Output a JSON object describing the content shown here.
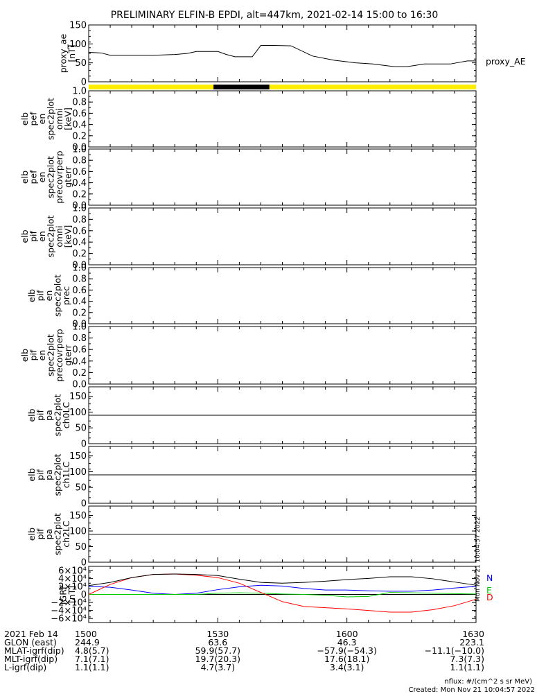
{
  "title": "PRELIMINARY ELFIN-B EPDI, alt=447km, 2021-02-14 15:00 to 16:30",
  "colors": {
    "background": "#ffffff",
    "axes": "#000000",
    "sunlit_bar": "#ffee00",
    "eclipse_bar": "#000000",
    "N": "#0000ff",
    "E": "#00c800",
    "D": "#ff0000",
    "total": "#000000"
  },
  "chart_data": [
    {
      "type": "line",
      "ylabel_lines": [
        "proxy_ae",
        "[nT]"
      ],
      "ylim": [
        0,
        150
      ],
      "yticks": [
        0,
        50,
        100,
        150
      ],
      "ytick_labels": [
        "0",
        "50",
        "100",
        "150"
      ],
      "legend": "proxy_AE",
      "x_minutes": [
        0,
        3,
        5,
        10,
        15,
        20,
        23,
        25,
        28,
        30,
        32,
        34,
        36,
        38,
        40,
        43,
        47,
        52,
        57,
        62,
        66,
        71,
        74,
        78,
        84,
        88,
        90
      ],
      "values": [
        78,
        76,
        70,
        70,
        70,
        72,
        75,
        80,
        80,
        80,
        72,
        66,
        66,
        66,
        96,
        96,
        95,
        68,
        57,
        50,
        47,
        40,
        40,
        47,
        47,
        55,
        55
      ]
    },
    {
      "type": "bar",
      "series": "sunlight",
      "segments": [
        {
          "start_minutes": 0,
          "end_minutes": 29,
          "state": "sunlit"
        },
        {
          "start_minutes": 29,
          "end_minutes": 42,
          "state": "eclipse"
        },
        {
          "start_minutes": 42,
          "end_minutes": 90,
          "state": "sunlit"
        }
      ]
    },
    {
      "type": "heatmap",
      "ylabel_lines": [
        "elb",
        "pef",
        "en",
        "spec2plot",
        "omni",
        "[keV]"
      ],
      "ylim": [
        0,
        1
      ],
      "ytick_labels": [
        "0.0",
        "0.2",
        "0.4",
        "0.6",
        "0.8",
        "1.0"
      ]
    },
    {
      "type": "heatmap",
      "ylabel_lines": [
        "elb",
        "pef",
        "en",
        "spec2plot",
        "precovrperp",
        "gterr"
      ],
      "ylim": [
        0,
        1
      ],
      "ytick_labels": [
        "0.0",
        "0.2",
        "0.4",
        "0.6",
        "0.8",
        "1.0"
      ]
    },
    {
      "type": "heatmap",
      "ylabel_lines": [
        "elb",
        "pif",
        "en",
        "spec2plot",
        "omni",
        "[keV]"
      ],
      "ylim": [
        0,
        1
      ],
      "ytick_labels": [
        "0.0",
        "0.2",
        "0.4",
        "0.6",
        "0.8",
        "1.0"
      ]
    },
    {
      "type": "heatmap",
      "ylabel_lines": [
        "elb",
        "pif",
        "en",
        "spec2plot",
        "prec"
      ],
      "ylim": [
        0,
        1
      ],
      "ytick_labels": [
        "0.0",
        "0.2",
        "0.4",
        "0.6",
        "0.8",
        "1.0"
      ]
    },
    {
      "type": "heatmap",
      "ylabel_lines": [
        "elb",
        "pif",
        "en",
        "spec2plot",
        "precovrperp",
        "gterr"
      ],
      "ylim": [
        0,
        1
      ],
      "ytick_labels": [
        "0.0",
        "0.2",
        "0.4",
        "0.6",
        "0.8",
        "1.0"
      ]
    },
    {
      "type": "heatmap",
      "ylabel_lines": [
        "elb",
        "pif",
        "pa",
        "spec2plot",
        "ch0LC"
      ],
      "ylim": [
        0,
        180
      ],
      "ytick_labels": [
        "0",
        "50",
        "100",
        "150"
      ],
      "hline": 90
    },
    {
      "type": "heatmap",
      "ylabel_lines": [
        "elb",
        "pif",
        "pa",
        "spec2plot",
        "ch1LC"
      ],
      "ylim": [
        0,
        180
      ],
      "ytick_labels": [
        "0",
        "50",
        "100",
        "150"
      ],
      "hline": 90
    },
    {
      "type": "heatmap",
      "ylabel_lines": [
        "elb",
        "pif",
        "pa",
        "spec2plot",
        "ch2LC"
      ],
      "ylim": [
        0,
        180
      ],
      "ytick_labels": [
        "0",
        "50",
        "100",
        "150"
      ],
      "hline": 90
    },
    {
      "type": "line",
      "ylabel_lines": [
        "IGRF",
        "[nT]"
      ],
      "ylim": [
        -70000,
        70000
      ],
      "ytick_labels": [
        "−6×10⁴",
        "−4×10⁴",
        "−2×10⁴",
        "0",
        "2×10⁴",
        "4×10⁴",
        "6×10⁴"
      ],
      "x_minutes": [
        0,
        5,
        10,
        15,
        20,
        25,
        30,
        35,
        40,
        45,
        50,
        55,
        60,
        65,
        70,
        75,
        80,
        85,
        90
      ],
      "series": [
        {
          "name": "N",
          "values": [
            20000,
            18000,
            11000,
            3000,
            0,
            3000,
            12000,
            19000,
            23000,
            21000,
            15000,
            11000,
            11000,
            9000,
            8000,
            8000,
            11000,
            16000,
            20000
          ]
        },
        {
          "name": "E",
          "values": [
            0,
            0,
            0,
            0,
            0,
            0,
            3000,
            4000,
            3000,
            1000,
            0,
            -2000,
            -6000,
            -5000,
            5000,
            4000,
            3000,
            2000,
            1000
          ]
        },
        {
          "name": "D",
          "values": [
            0,
            25000,
            42000,
            50000,
            51000,
            48000,
            42000,
            28000,
            5000,
            -18000,
            -30000,
            -33000,
            -36000,
            -40000,
            -44000,
            -44000,
            -38000,
            -28000,
            -12000
          ]
        },
        {
          "name": "total",
          "values": [
            22000,
            30000,
            42000,
            50000,
            51000,
            50000,
            47000,
            38000,
            30000,
            28000,
            30000,
            33000,
            37000,
            40000,
            44000,
            44000,
            39000,
            31000,
            23000
          ]
        }
      ],
      "legend_labels": [
        "N",
        "E",
        "D"
      ],
      "side_note": "Mon Nov 21 10:04:57 2022"
    }
  ],
  "x_axis": {
    "row_labels": [
      "2021 Feb 14",
      "GLON (east)",
      "MLAT-igrf(dip)",
      "MLT-igrf(dip)",
      "L-igrf(dip)"
    ],
    "columns": [
      {
        "minutes": 0,
        "values": [
          "1500",
          "244.9",
          "4.8(5.7)",
          "7.1(7.1)",
          "1.1(1.1)"
        ]
      },
      {
        "minutes": 30,
        "values": [
          "1530",
          "63.6",
          "59.9(57.7)",
          "19.7(20.3)",
          "4.7(3.7)"
        ]
      },
      {
        "minutes": 60,
        "values": [
          "1600",
          "46.3",
          "−57.9(−54.3)",
          "17.6(18.1)",
          "3.4(3.1)"
        ]
      },
      {
        "minutes": 90,
        "values": [
          "1630",
          "223.1",
          "−11.1(−10.0)",
          "7.3(7.3)",
          "1.1(1.1)"
        ]
      }
    ]
  },
  "footer": {
    "units": "nflux: #/(cm^2 s sr MeV)",
    "created": "Created: Mon Nov 21 10:04:57 2022"
  }
}
